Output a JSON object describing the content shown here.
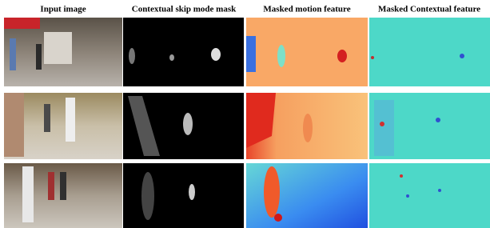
{
  "figure": {
    "column_headers": [
      "Input image",
      "Contextual skip mode mask",
      "Masked motion feature",
      "Masked Contextual feature"
    ]
  }
}
